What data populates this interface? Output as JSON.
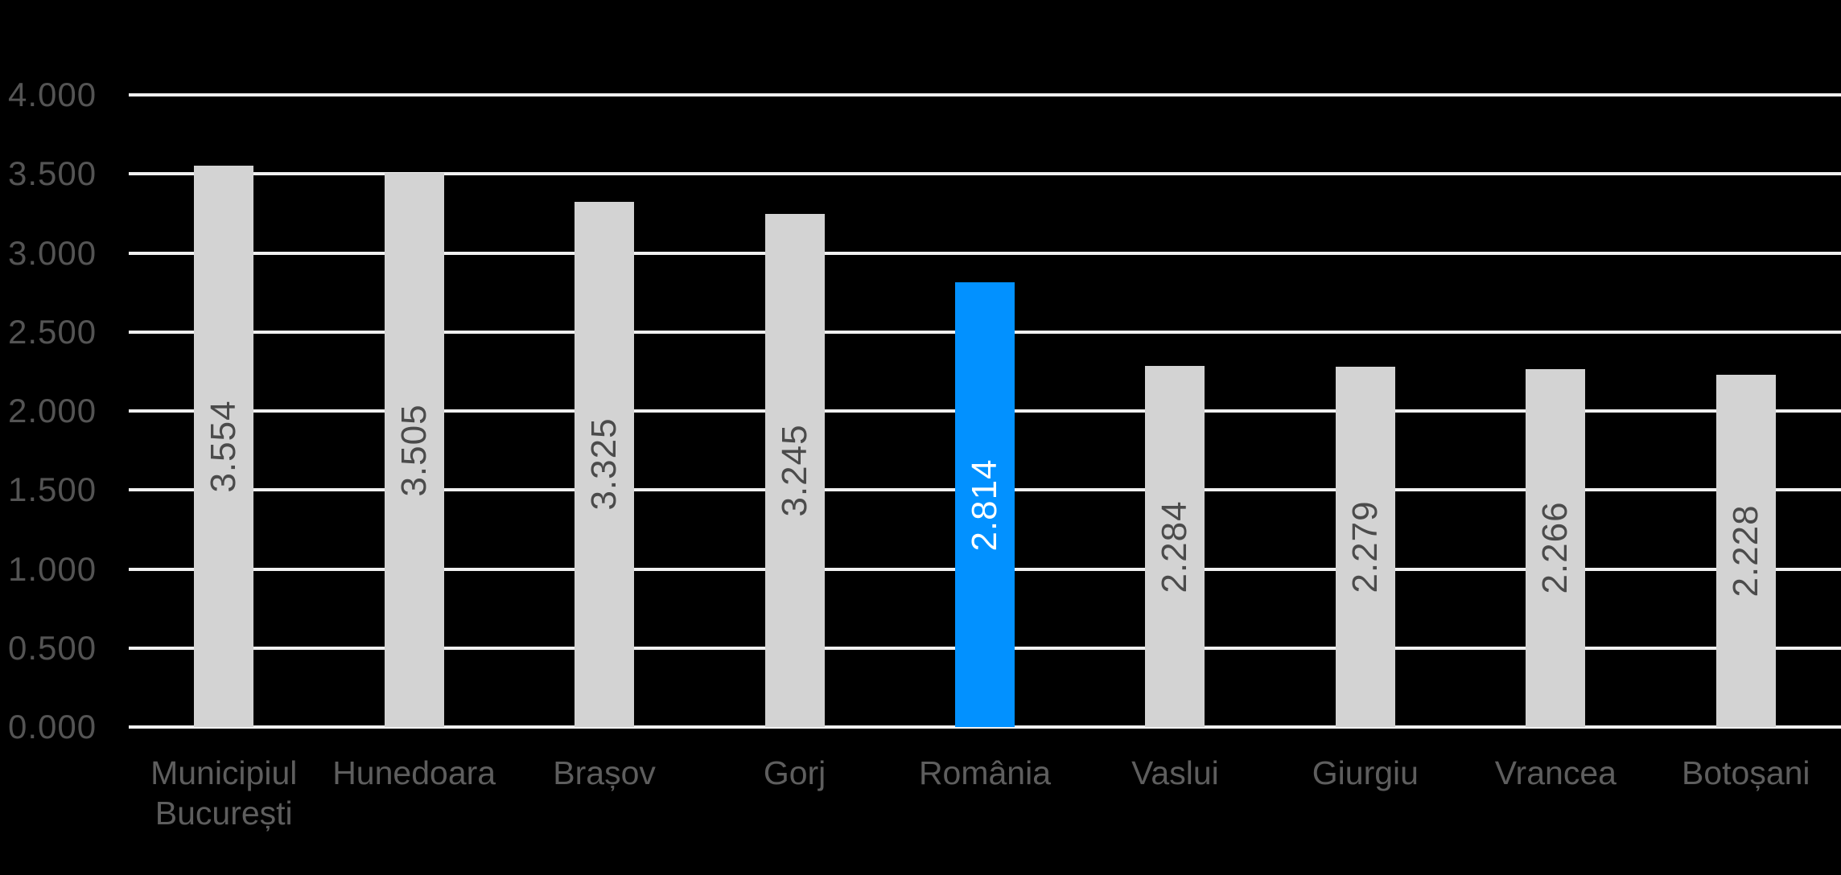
{
  "chart_data": {
    "type": "bar",
    "title": "",
    "xlabel": "",
    "ylabel": "",
    "categories": [
      "Municipiul București",
      "Hunedoara",
      "Brașov",
      "Gorj",
      "România",
      "Vaslui",
      "Giurgiu",
      "Vrancea",
      "Botoșani"
    ],
    "values": [
      3.554,
      3.505,
      3.325,
      3.245,
      2.814,
      2.284,
      2.279,
      2.266,
      2.228
    ],
    "value_labels": [
      "3.554",
      "3.505",
      "3.325",
      "3.245",
      "2.814",
      "2.284",
      "2.279",
      "2.266",
      "2.228"
    ],
    "highlight_index": 4,
    "ylim": [
      0,
      4
    ],
    "y_tick_labels": [
      "0.000",
      "0.500",
      "1.000",
      "1.500",
      "2.000",
      "2.500",
      "3.000",
      "3.500",
      "4.000"
    ],
    "grid": true,
    "legend": false,
    "value_label_rotation": -90
  },
  "colors": {
    "background": "#000000",
    "bar": "#d3d3d3",
    "bar_highlight": "#0291ff",
    "gridline": "#f0f0f0",
    "y_axis_text": "#545454",
    "x_axis_text": "#5e5e5e",
    "bar_value_text": "#4b4b4b",
    "bar_value_text_highlight": "#ffffff"
  }
}
